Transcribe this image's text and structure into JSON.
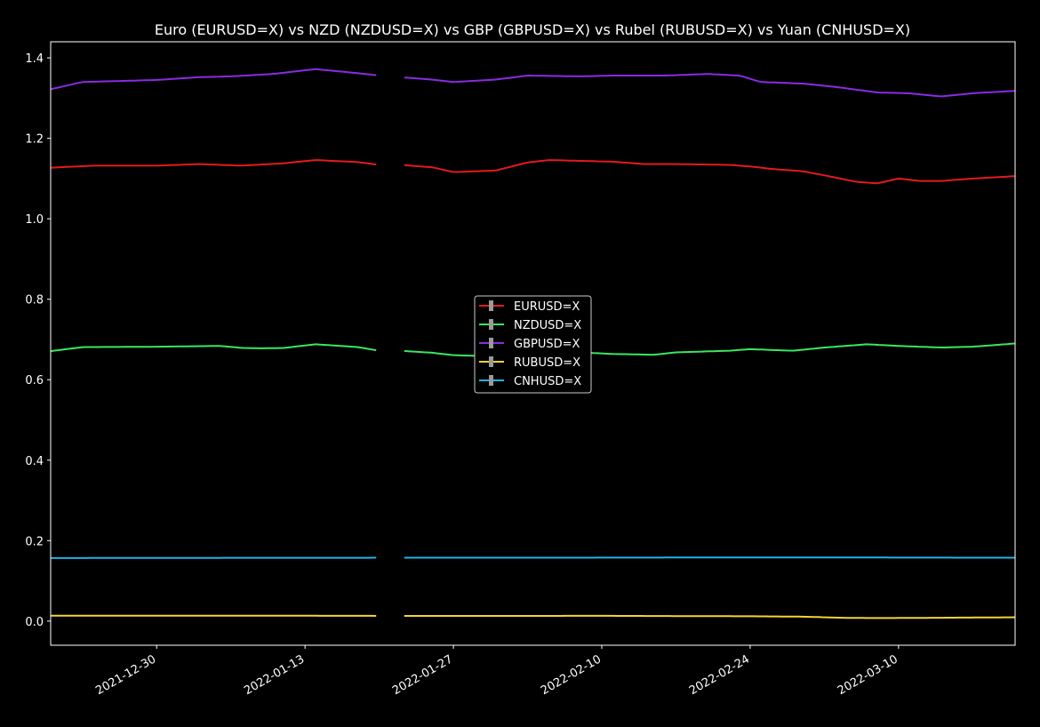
{
  "chart_data": {
    "type": "line",
    "title": "Euro (EURUSD=X) vs NZD (NZDUSD=X) vs GBP (GBPUSD=X) vs Rubel (RUBUSD=X) vs Yuan (CNHUSD=X)",
    "xlabel": "",
    "ylabel": "",
    "x_range": [
      "2021-12-20",
      "2022-03-21"
    ],
    "ylim": [
      -0.06,
      1.44
    ],
    "x_ticks": [
      "2021-12-30",
      "2022-01-13",
      "2022-01-27",
      "2022-02-10",
      "2022-02-24",
      "2022-03-10"
    ],
    "y_ticks": [
      "0.0",
      "0.2",
      "0.4",
      "0.6",
      "0.8",
      "1.0",
      "1.2",
      "1.4"
    ],
    "grid": false,
    "legend_position": "center",
    "background": "#000000",
    "gaps": [
      [
        "2022-01-20",
        "2022-01-22"
      ]
    ],
    "series": [
      {
        "name": "EURUSD=X",
        "color": "#e31a1c",
        "points": [
          [
            "2021-12-20",
            1.127
          ],
          [
            "2021-12-24",
            1.132
          ],
          [
            "2021-12-30",
            1.132
          ],
          [
            "2022-01-03",
            1.136
          ],
          [
            "2022-01-07",
            1.132
          ],
          [
            "2022-01-11",
            1.138
          ],
          [
            "2022-01-14",
            1.146
          ],
          [
            "2022-01-18",
            1.141
          ],
          [
            "2022-01-20",
            1.134
          ],
          [
            "2022-01-22",
            1.134
          ],
          [
            "2022-01-25",
            1.128
          ],
          [
            "2022-01-27",
            1.116
          ],
          [
            "2022-01-31",
            1.12
          ],
          [
            "2022-02-03",
            1.14
          ],
          [
            "2022-02-05",
            1.146
          ],
          [
            "2022-02-08",
            1.144
          ],
          [
            "2022-02-11",
            1.142
          ],
          [
            "2022-02-14",
            1.136
          ],
          [
            "2022-02-17",
            1.136
          ],
          [
            "2022-02-22",
            1.134
          ],
          [
            "2022-02-24",
            1.13
          ],
          [
            "2022-02-26",
            1.124
          ],
          [
            "2022-03-01",
            1.118
          ],
          [
            "2022-03-03",
            1.108
          ],
          [
            "2022-03-06",
            1.092
          ],
          [
            "2022-03-08",
            1.088
          ],
          [
            "2022-03-10",
            1.1
          ],
          [
            "2022-03-12",
            1.094
          ],
          [
            "2022-03-14",
            1.094
          ],
          [
            "2022-03-17",
            1.1
          ],
          [
            "2022-03-21",
            1.106
          ]
        ]
      },
      {
        "name": "NZDUSD=X",
        "color": "#39e75f",
        "points": [
          [
            "2021-12-20",
            0.671
          ],
          [
            "2021-12-23",
            0.681
          ],
          [
            "2021-12-30",
            0.682
          ],
          [
            "2022-01-05",
            0.684
          ],
          [
            "2022-01-07",
            0.679
          ],
          [
            "2022-01-09",
            0.678
          ],
          [
            "2022-01-11",
            0.679
          ],
          [
            "2022-01-14",
            0.688
          ],
          [
            "2022-01-18",
            0.681
          ],
          [
            "2022-01-20",
            0.672
          ],
          [
            "2022-01-22",
            0.672
          ],
          [
            "2022-01-25",
            0.667
          ],
          [
            "2022-01-27",
            0.661
          ],
          [
            "2022-01-31",
            0.658
          ],
          [
            "2022-02-03",
            0.664
          ],
          [
            "2022-02-08",
            0.668
          ],
          [
            "2022-02-11",
            0.664
          ],
          [
            "2022-02-15",
            0.662
          ],
          [
            "2022-02-17",
            0.668
          ],
          [
            "2022-02-22",
            0.672
          ],
          [
            "2022-02-24",
            0.676
          ],
          [
            "2022-02-28",
            0.672
          ],
          [
            "2022-03-03",
            0.68
          ],
          [
            "2022-03-07",
            0.688
          ],
          [
            "2022-03-10",
            0.684
          ],
          [
            "2022-03-14",
            0.68
          ],
          [
            "2022-03-17",
            0.682
          ],
          [
            "2022-03-21",
            0.69
          ]
        ]
      },
      {
        "name": "GBPUSD=X",
        "color": "#8a2be2",
        "points": [
          [
            "2021-12-20",
            1.322
          ],
          [
            "2021-12-23",
            1.34
          ],
          [
            "2021-12-30",
            1.345
          ],
          [
            "2022-01-03",
            1.352
          ],
          [
            "2022-01-06",
            1.354
          ],
          [
            "2022-01-10",
            1.36
          ],
          [
            "2022-01-14",
            1.372
          ],
          [
            "2022-01-18",
            1.362
          ],
          [
            "2022-01-20",
            1.356
          ],
          [
            "2022-01-22",
            1.352
          ],
          [
            "2022-01-25",
            1.346
          ],
          [
            "2022-01-27",
            1.34
          ],
          [
            "2022-01-31",
            1.346
          ],
          [
            "2022-02-03",
            1.356
          ],
          [
            "2022-02-08",
            1.354
          ],
          [
            "2022-02-11",
            1.356
          ],
          [
            "2022-02-16",
            1.356
          ],
          [
            "2022-02-20",
            1.36
          ],
          [
            "2022-02-23",
            1.356
          ],
          [
            "2022-02-25",
            1.34
          ],
          [
            "2022-03-01",
            1.336
          ],
          [
            "2022-03-04",
            1.328
          ],
          [
            "2022-03-08",
            1.314
          ],
          [
            "2022-03-11",
            1.312
          ],
          [
            "2022-03-14",
            1.304
          ],
          [
            "2022-03-17",
            1.312
          ],
          [
            "2022-03-21",
            1.318
          ]
        ]
      },
      {
        "name": "RUBUSD=X",
        "color": "#f5d434",
        "points": [
          [
            "2021-12-20",
            0.0136
          ],
          [
            "2022-01-10",
            0.0134
          ],
          [
            "2022-01-20",
            0.013
          ],
          [
            "2022-01-28",
            0.0128
          ],
          [
            "2022-02-10",
            0.0131
          ],
          [
            "2022-02-24",
            0.012
          ],
          [
            "2022-03-01",
            0.011
          ],
          [
            "2022-03-05",
            0.008
          ],
          [
            "2022-03-08",
            0.0075
          ],
          [
            "2022-03-12",
            0.008
          ],
          [
            "2022-03-21",
            0.0095
          ]
        ]
      },
      {
        "name": "CNHUSD=X",
        "color": "#1fb3e6",
        "points": [
          [
            "2021-12-20",
            0.1567
          ],
          [
            "2022-01-06",
            0.1573
          ],
          [
            "2022-01-20",
            0.1575
          ],
          [
            "2022-02-03",
            0.1575
          ],
          [
            "2022-02-24",
            0.1582
          ],
          [
            "2022-03-07",
            0.158
          ],
          [
            "2022-03-21",
            0.1575
          ]
        ]
      }
    ]
  }
}
